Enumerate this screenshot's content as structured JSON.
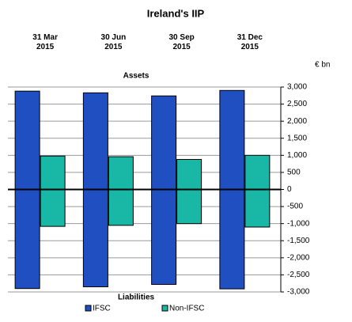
{
  "chart_data": {
    "type": "bar",
    "title": "Ireland's IIP",
    "unit_label": "€ bn",
    "assets_label": "Assets",
    "liabilities_label": "Liabilities",
    "categories": [
      "31 Mar\n2015",
      "30 Jun\n2015",
      "30 Sep\n2015",
      "31 Dec\n2015"
    ],
    "series": [
      {
        "name": "IFSC",
        "color": "#1f4fc0",
        "assets": [
          2880,
          2830,
          2740,
          2900
        ],
        "liabilities": [
          -2900,
          -2850,
          -2780,
          -2910
        ]
      },
      {
        "name": "Non-IFSC",
        "color": "#19b7a6",
        "assets": [
          980,
          960,
          880,
          1000
        ],
        "liabilities": [
          -1080,
          -1050,
          -1000,
          -1100
        ]
      }
    ],
    "ylim": [
      -3000,
      3000
    ],
    "yticks": [
      {
        "value": -3000,
        "label": "-3,000"
      },
      {
        "value": -2500,
        "label": "-2,500"
      },
      {
        "value": -2000,
        "label": "-2,000"
      },
      {
        "value": -1500,
        "label": "-1,500"
      },
      {
        "value": -1000,
        "label": "-1,000"
      },
      -500,
      0,
      500,
      {
        "value": 1000,
        "label": "1,000"
      },
      {
        "value": 1500,
        "label": "1,500"
      },
      {
        "value": 2000,
        "label": "2,000"
      },
      {
        "value": 2500,
        "label": "2,500"
      },
      {
        "value": 3000,
        "label": "3,000"
      }
    ],
    "grid": true
  }
}
